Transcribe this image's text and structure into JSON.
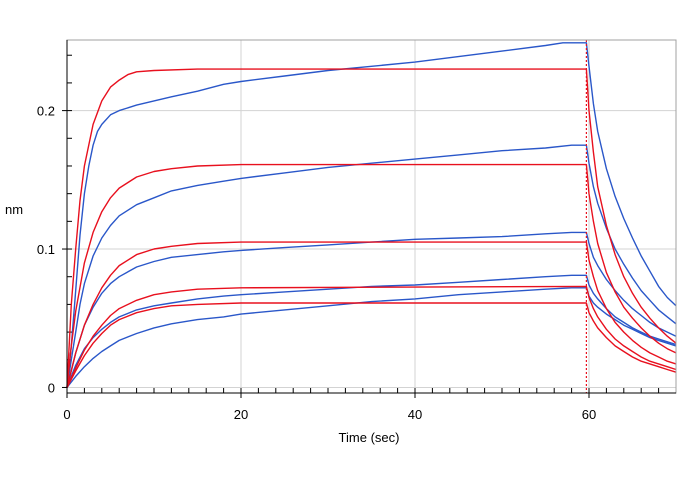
{
  "chart_data": {
    "type": "line",
    "title": "",
    "xlabel": "Time (sec)",
    "ylabel": "nm",
    "xlim": [
      0,
      70
    ],
    "ylim": [
      -0.004,
      0.251
    ],
    "grid": true,
    "legend": "none",
    "x_ticks": [
      {
        "value": 0,
        "label": "0"
      },
      {
        "value": 20,
        "label": "20"
      },
      {
        "value": 40,
        "label": "40"
      },
      {
        "value": 60,
        "label": "60"
      }
    ],
    "y_ticks": [
      {
        "value": 0,
        "label": "0"
      },
      {
        "value": 0.1,
        "label": "0.1"
      },
      {
        "value": 0.2,
        "label": "0.2"
      }
    ],
    "dissociation_start": 59.7,
    "colors": {
      "measured": "#2a57c9",
      "fit": "#e8101e",
      "marker": "#e8101e",
      "grid": "#d3d3d3"
    },
    "series": [
      {
        "role": "measured",
        "points": [
          [
            0,
            0
          ],
          [
            0.5,
            0.03
          ],
          [
            1,
            0.07
          ],
          [
            1.5,
            0.11
          ],
          [
            2,
            0.14
          ],
          [
            2.5,
            0.16
          ],
          [
            3,
            0.175
          ],
          [
            3.5,
            0.185
          ],
          [
            4,
            0.19
          ],
          [
            5,
            0.197
          ],
          [
            6,
            0.2
          ],
          [
            8,
            0.204
          ],
          [
            10,
            0.207
          ],
          [
            12,
            0.21
          ],
          [
            15,
            0.214
          ],
          [
            18,
            0.219
          ],
          [
            20,
            0.221
          ],
          [
            25,
            0.225
          ],
          [
            30,
            0.229
          ],
          [
            35,
            0.232
          ],
          [
            40,
            0.235
          ],
          [
            45,
            0.239
          ],
          [
            50,
            0.243
          ],
          [
            55,
            0.247
          ],
          [
            57,
            0.249
          ],
          [
            59.7,
            0.249
          ],
          [
            60,
            0.232
          ],
          [
            60.5,
            0.205
          ],
          [
            61,
            0.185
          ],
          [
            62,
            0.158
          ],
          [
            63,
            0.138
          ],
          [
            64,
            0.122
          ],
          [
            65,
            0.108
          ],
          [
            66,
            0.095
          ],
          [
            67,
            0.084
          ],
          [
            68,
            0.073
          ],
          [
            69,
            0.065
          ],
          [
            70,
            0.059
          ]
        ]
      },
      {
        "role": "measured",
        "points": [
          [
            0,
            0
          ],
          [
            0.5,
            0.02
          ],
          [
            1,
            0.04
          ],
          [
            1.5,
            0.06
          ],
          [
            2,
            0.075
          ],
          [
            3,
            0.095
          ],
          [
            4,
            0.108
          ],
          [
            5,
            0.117
          ],
          [
            6,
            0.124
          ],
          [
            8,
            0.132
          ],
          [
            10,
            0.137
          ],
          [
            12,
            0.142
          ],
          [
            15,
            0.146
          ],
          [
            18,
            0.149
          ],
          [
            20,
            0.151
          ],
          [
            25,
            0.155
          ],
          [
            30,
            0.159
          ],
          [
            35,
            0.162
          ],
          [
            40,
            0.165
          ],
          [
            45,
            0.168
          ],
          [
            50,
            0.171
          ],
          [
            55,
            0.173
          ],
          [
            58,
            0.175
          ],
          [
            59.7,
            0.175
          ],
          [
            60,
            0.162
          ],
          [
            60.5,
            0.145
          ],
          [
            61,
            0.133
          ],
          [
            62,
            0.115
          ],
          [
            63,
            0.1
          ],
          [
            64,
            0.089
          ],
          [
            65,
            0.079
          ],
          [
            66,
            0.07
          ],
          [
            67,
            0.063
          ],
          [
            68,
            0.056
          ],
          [
            69,
            0.051
          ],
          [
            70,
            0.046
          ]
        ]
      },
      {
        "role": "measured",
        "points": [
          [
            0,
            0
          ],
          [
            0.5,
            0.012
          ],
          [
            1,
            0.025
          ],
          [
            2,
            0.045
          ],
          [
            3,
            0.058
          ],
          [
            4,
            0.068
          ],
          [
            5,
            0.075
          ],
          [
            6,
            0.08
          ],
          [
            8,
            0.087
          ],
          [
            10,
            0.091
          ],
          [
            12,
            0.094
          ],
          [
            15,
            0.096
          ],
          [
            18,
            0.098
          ],
          [
            20,
            0.099
          ],
          [
            25,
            0.101
          ],
          [
            30,
            0.103
          ],
          [
            35,
            0.105
          ],
          [
            40,
            0.107
          ],
          [
            45,
            0.108
          ],
          [
            50,
            0.109
          ],
          [
            55,
            0.111
          ],
          [
            58,
            0.112
          ],
          [
            59.7,
            0.112
          ],
          [
            60,
            0.104
          ],
          [
            60.5,
            0.094
          ],
          [
            61,
            0.088
          ],
          [
            62,
            0.078
          ],
          [
            63,
            0.07
          ],
          [
            64,
            0.063
          ],
          [
            65,
            0.057
          ],
          [
            66,
            0.052
          ],
          [
            67,
            0.047
          ],
          [
            68,
            0.043
          ],
          [
            69,
            0.04
          ],
          [
            70,
            0.037
          ]
        ]
      },
      {
        "role": "measured",
        "points": [
          [
            0,
            0
          ],
          [
            0.5,
            0.008
          ],
          [
            1,
            0.016
          ],
          [
            2,
            0.028
          ],
          [
            3,
            0.036
          ],
          [
            4,
            0.042
          ],
          [
            5,
            0.047
          ],
          [
            6,
            0.051
          ],
          [
            8,
            0.056
          ],
          [
            10,
            0.059
          ],
          [
            12,
            0.061
          ],
          [
            15,
            0.064
          ],
          [
            18,
            0.066
          ],
          [
            20,
            0.067
          ],
          [
            25,
            0.069
          ],
          [
            30,
            0.071
          ],
          [
            35,
            0.073
          ],
          [
            40,
            0.074
          ],
          [
            45,
            0.076
          ],
          [
            50,
            0.078
          ],
          [
            55,
            0.08
          ],
          [
            58,
            0.081
          ],
          [
            59.7,
            0.081
          ],
          [
            60,
            0.074
          ],
          [
            60.5,
            0.068
          ],
          [
            61,
            0.064
          ],
          [
            62,
            0.057
          ],
          [
            63,
            0.051
          ],
          [
            64,
            0.047
          ],
          [
            65,
            0.043
          ],
          [
            66,
            0.04
          ],
          [
            67,
            0.037
          ],
          [
            68,
            0.035
          ],
          [
            69,
            0.033
          ],
          [
            70,
            0.031
          ]
        ]
      },
      {
        "role": "measured",
        "points": [
          [
            0,
            0
          ],
          [
            1,
            0.008
          ],
          [
            2,
            0.015
          ],
          [
            3,
            0.021
          ],
          [
            4,
            0.026
          ],
          [
            5,
            0.03
          ],
          [
            6,
            0.034
          ],
          [
            8,
            0.039
          ],
          [
            10,
            0.043
          ],
          [
            12,
            0.046
          ],
          [
            15,
            0.049
          ],
          [
            18,
            0.051
          ],
          [
            20,
            0.053
          ],
          [
            25,
            0.056
          ],
          [
            30,
            0.059
          ],
          [
            35,
            0.062
          ],
          [
            40,
            0.064
          ],
          [
            45,
            0.067
          ],
          [
            50,
            0.069
          ],
          [
            55,
            0.071
          ],
          [
            58,
            0.072
          ],
          [
            59.7,
            0.072
          ],
          [
            60,
            0.066
          ],
          [
            60.5,
            0.061
          ],
          [
            61,
            0.058
          ],
          [
            62,
            0.053
          ],
          [
            63,
            0.049
          ],
          [
            64,
            0.045
          ],
          [
            65,
            0.042
          ],
          [
            66,
            0.039
          ],
          [
            67,
            0.036
          ],
          [
            68,
            0.034
          ],
          [
            69,
            0.032
          ],
          [
            70,
            0.03
          ]
        ]
      },
      {
        "role": "fit",
        "points": [
          [
            0,
            0
          ],
          [
            0.5,
            0.06
          ],
          [
            1,
            0.1
          ],
          [
            1.5,
            0.135
          ],
          [
            2,
            0.16
          ],
          [
            3,
            0.19
          ],
          [
            4,
            0.207
          ],
          [
            5,
            0.217
          ],
          [
            6,
            0.222
          ],
          [
            7,
            0.226
          ],
          [
            8,
            0.228
          ],
          [
            10,
            0.229
          ],
          [
            15,
            0.23
          ],
          [
            59.7,
            0.23
          ],
          [
            60,
            0.2
          ],
          [
            60.5,
            0.17
          ],
          [
            61,
            0.145
          ],
          [
            62,
            0.117
          ],
          [
            63,
            0.096
          ],
          [
            64,
            0.08
          ],
          [
            65,
            0.068
          ],
          [
            66,
            0.058
          ],
          [
            67,
            0.05
          ],
          [
            68,
            0.043
          ],
          [
            69,
            0.037
          ],
          [
            70,
            0.032
          ]
        ]
      },
      {
        "role": "fit",
        "points": [
          [
            0,
            0
          ],
          [
            0.5,
            0.03
          ],
          [
            1,
            0.055
          ],
          [
            2,
            0.09
          ],
          [
            3,
            0.112
          ],
          [
            4,
            0.127
          ],
          [
            5,
            0.137
          ],
          [
            6,
            0.144
          ],
          [
            8,
            0.152
          ],
          [
            10,
            0.156
          ],
          [
            12,
            0.158
          ],
          [
            15,
            0.16
          ],
          [
            20,
            0.161
          ],
          [
            59.7,
            0.161
          ],
          [
            60,
            0.14
          ],
          [
            60.5,
            0.12
          ],
          [
            61,
            0.104
          ],
          [
            62,
            0.083
          ],
          [
            63,
            0.069
          ],
          [
            64,
            0.058
          ],
          [
            65,
            0.05
          ],
          [
            66,
            0.043
          ],
          [
            67,
            0.037
          ],
          [
            68,
            0.032
          ],
          [
            69,
            0.028
          ],
          [
            70,
            0.025
          ]
        ]
      },
      {
        "role": "fit",
        "points": [
          [
            0,
            0
          ],
          [
            1,
            0.025
          ],
          [
            2,
            0.045
          ],
          [
            3,
            0.06
          ],
          [
            4,
            0.072
          ],
          [
            5,
            0.081
          ],
          [
            6,
            0.088
          ],
          [
            8,
            0.096
          ],
          [
            10,
            0.1
          ],
          [
            12,
            0.102
          ],
          [
            15,
            0.104
          ],
          [
            20,
            0.105
          ],
          [
            59.7,
            0.105
          ],
          [
            60,
            0.092
          ],
          [
            60.5,
            0.08
          ],
          [
            61,
            0.07
          ],
          [
            62,
            0.057
          ],
          [
            63,
            0.047
          ],
          [
            64,
            0.04
          ],
          [
            65,
            0.034
          ],
          [
            66,
            0.029
          ],
          [
            67,
            0.025
          ],
          [
            68,
            0.022
          ],
          [
            69,
            0.019
          ],
          [
            70,
            0.017
          ]
        ]
      },
      {
        "role": "fit",
        "points": [
          [
            0,
            0
          ],
          [
            1,
            0.014
          ],
          [
            2,
            0.027
          ],
          [
            3,
            0.037
          ],
          [
            4,
            0.045
          ],
          [
            5,
            0.052
          ],
          [
            6,
            0.057
          ],
          [
            8,
            0.063
          ],
          [
            10,
            0.067
          ],
          [
            12,
            0.069
          ],
          [
            15,
            0.071
          ],
          [
            20,
            0.072
          ],
          [
            59.7,
            0.073
          ],
          [
            60,
            0.065
          ],
          [
            60.5,
            0.057
          ],
          [
            61,
            0.051
          ],
          [
            62,
            0.042
          ],
          [
            63,
            0.035
          ],
          [
            64,
            0.03
          ],
          [
            65,
            0.026
          ],
          [
            66,
            0.022
          ],
          [
            67,
            0.019
          ],
          [
            68,
            0.017
          ],
          [
            69,
            0.015
          ],
          [
            70,
            0.013
          ]
        ]
      },
      {
        "role": "fit",
        "points": [
          [
            0,
            0
          ],
          [
            1,
            0.012
          ],
          [
            2,
            0.023
          ],
          [
            3,
            0.032
          ],
          [
            4,
            0.039
          ],
          [
            5,
            0.045
          ],
          [
            6,
            0.049
          ],
          [
            8,
            0.054
          ],
          [
            10,
            0.057
          ],
          [
            12,
            0.059
          ],
          [
            15,
            0.06
          ],
          [
            20,
            0.061
          ],
          [
            59.7,
            0.061
          ],
          [
            60,
            0.054
          ],
          [
            60.5,
            0.048
          ],
          [
            61,
            0.043
          ],
          [
            62,
            0.036
          ],
          [
            63,
            0.03
          ],
          [
            64,
            0.026
          ],
          [
            65,
            0.022
          ],
          [
            66,
            0.019
          ],
          [
            67,
            0.017
          ],
          [
            68,
            0.015
          ],
          [
            69,
            0.013
          ],
          [
            70,
            0.011
          ]
        ]
      }
    ]
  }
}
